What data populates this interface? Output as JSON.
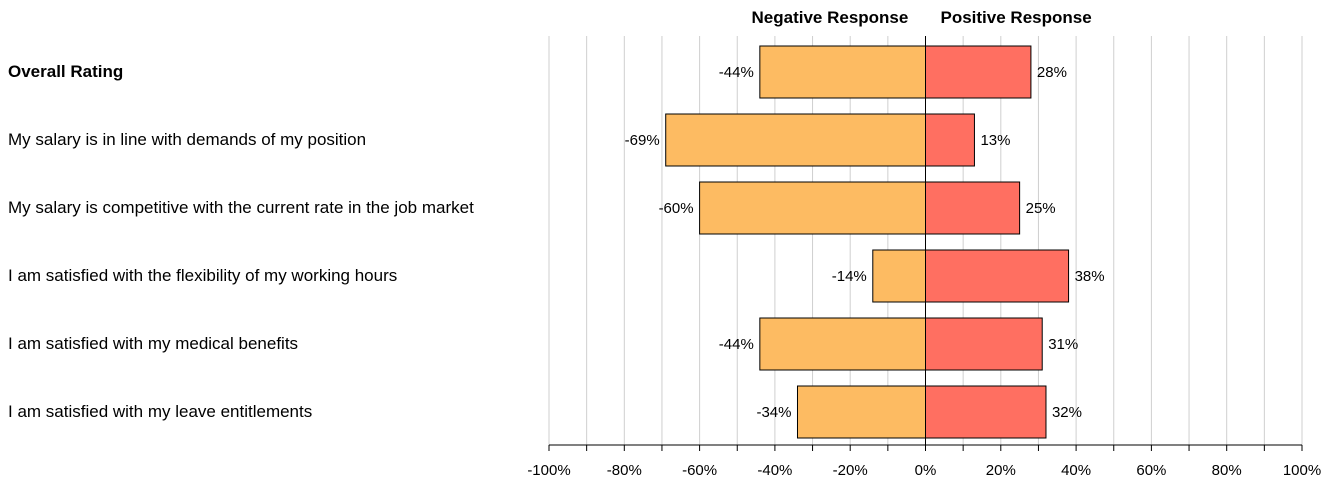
{
  "chart_data": {
    "type": "bar",
    "orientation": "horizontal",
    "stacking": "diverging",
    "headers": {
      "negative": "Negative Response",
      "positive": "Positive Response"
    },
    "categories": [
      "Overall Rating",
      "My salary is in line with demands of my position",
      "My salary is competitive with the current rate in the job market",
      "I am satisfied with the flexibility of my working hours",
      "I am satisfied with my medical benefits",
      "I am satisfied with my leave entitlements"
    ],
    "bold_categories": [
      "Overall Rating"
    ],
    "series": [
      {
        "values": [
          -44,
          -69,
          -60,
          -14,
          -44,
          -34
        ],
        "color": "#FDBB62",
        "labels": [
          "-44%",
          "-69%",
          "-60%",
          "-14%",
          "-44%",
          "-34%"
        ]
      },
      {
        "values": [
          28,
          13,
          25,
          38,
          31,
          32
        ],
        "color": "#FF6F61",
        "labels": [
          "28%",
          "13%",
          "25%",
          "38%",
          "31%",
          "32%"
        ]
      }
    ],
    "xlim": [
      -100,
      100
    ],
    "xticks": [
      -100,
      -80,
      -60,
      -40,
      -20,
      0,
      20,
      40,
      60,
      80,
      100
    ],
    "xtick_labels": [
      "-100%",
      "-80%",
      "-60%",
      "-40%",
      "-20%",
      "0%",
      "20%",
      "40%",
      "60%",
      "80%",
      "100%"
    ],
    "grid": "vertical",
    "legend": "none"
  }
}
